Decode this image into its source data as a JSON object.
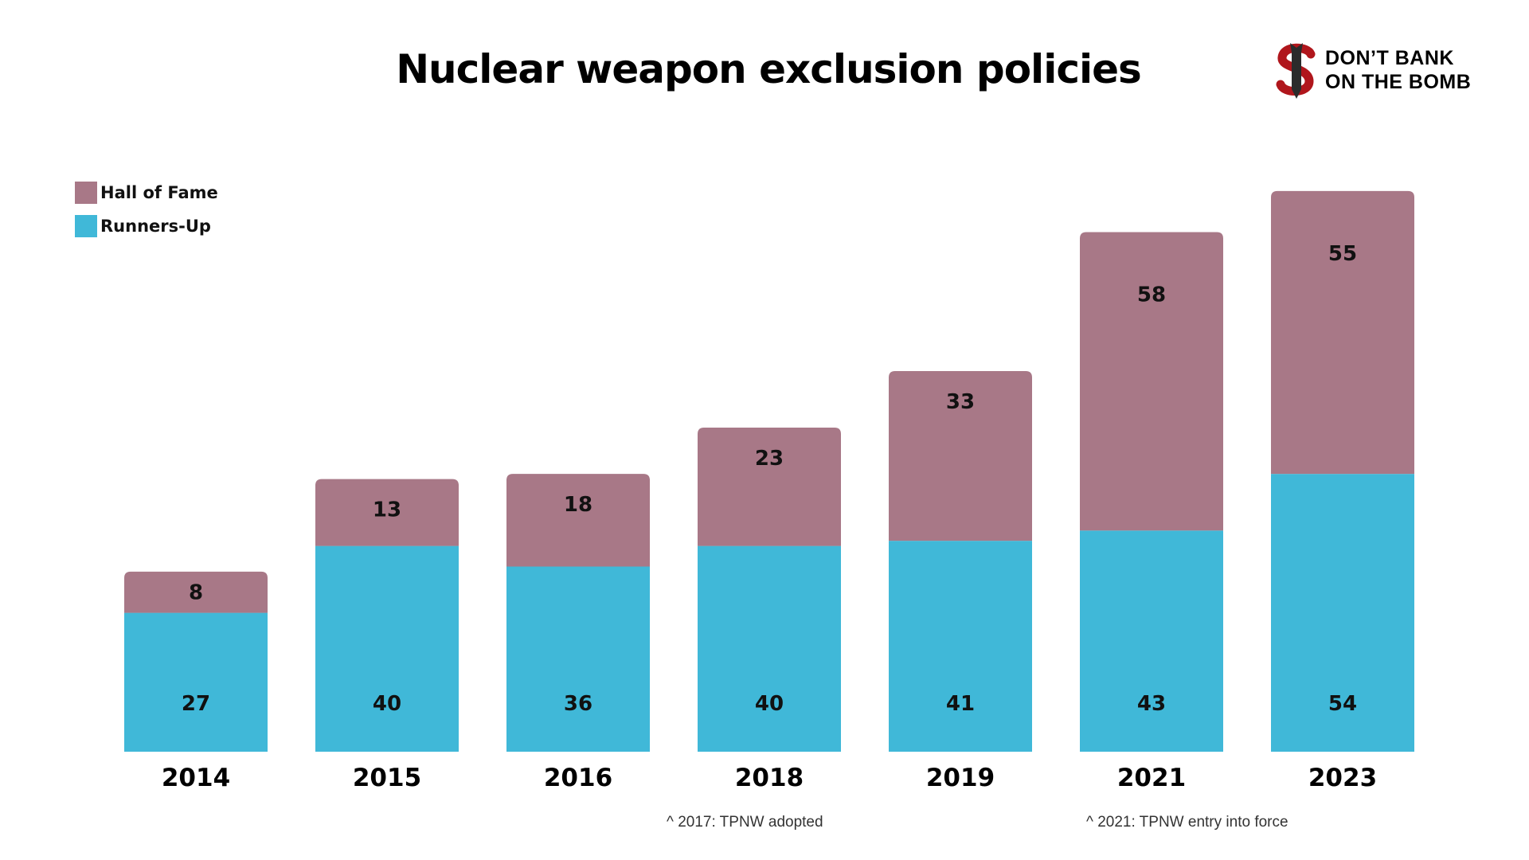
{
  "chart_data": {
    "type": "bar",
    "stacked": true,
    "title": "Nuclear weapon exclusion policies",
    "categories": [
      "2014",
      "2015",
      "2016",
      "2018",
      "2019",
      "2021",
      "2023"
    ],
    "series": [
      {
        "name": "Runners-Up",
        "color": "#40b8d8",
        "values": [
          27,
          40,
          36,
          40,
          41,
          43,
          54
        ]
      },
      {
        "name": "Hall of Fame",
        "color": "#a87887",
        "values": [
          8,
          13,
          18,
          23,
          33,
          58,
          55
        ]
      }
    ],
    "legend": "top-left",
    "grid": false,
    "annotations": [
      "^ 2017: TPNW adopted",
      "^ 2021: TPNW entry into force"
    ]
  },
  "logo": {
    "text_line1": "DON’T BANK",
    "text_line2": "ON THE BOMB"
  }
}
